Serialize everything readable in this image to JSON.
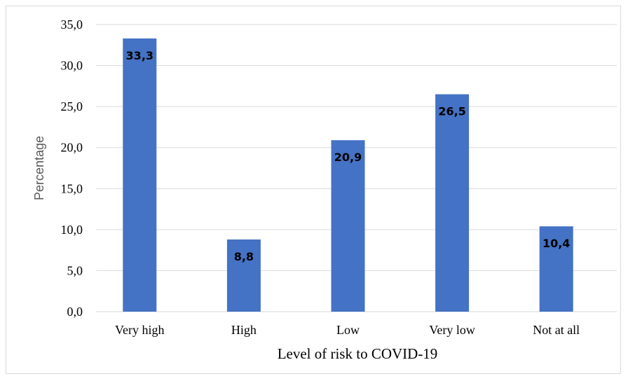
{
  "chart_data": {
    "type": "bar",
    "categories": [
      "Very high",
      "High",
      "Low",
      "Very low",
      "Not at all"
    ],
    "values": [
      33.3,
      8.8,
      20.9,
      26.5,
      10.4
    ],
    "data_labels": [
      "33,3",
      "8,8",
      "20,9",
      "26,5",
      "10,4"
    ],
    "xlabel": "Level of risk to COVID-19",
    "ylabel": "Percentage",
    "ylim": [
      0,
      35
    ],
    "yticks": [
      0,
      5,
      10,
      15,
      20,
      25,
      30,
      35
    ],
    "ytick_labels": [
      "0,0",
      "5,0",
      "10,0",
      "15,0",
      "20,0",
      "25,0",
      "30,0",
      "35,0"
    ],
    "grid": true,
    "legend": "none",
    "bar_color": "#4472C4",
    "grid_color": "#d9d9d9"
  }
}
